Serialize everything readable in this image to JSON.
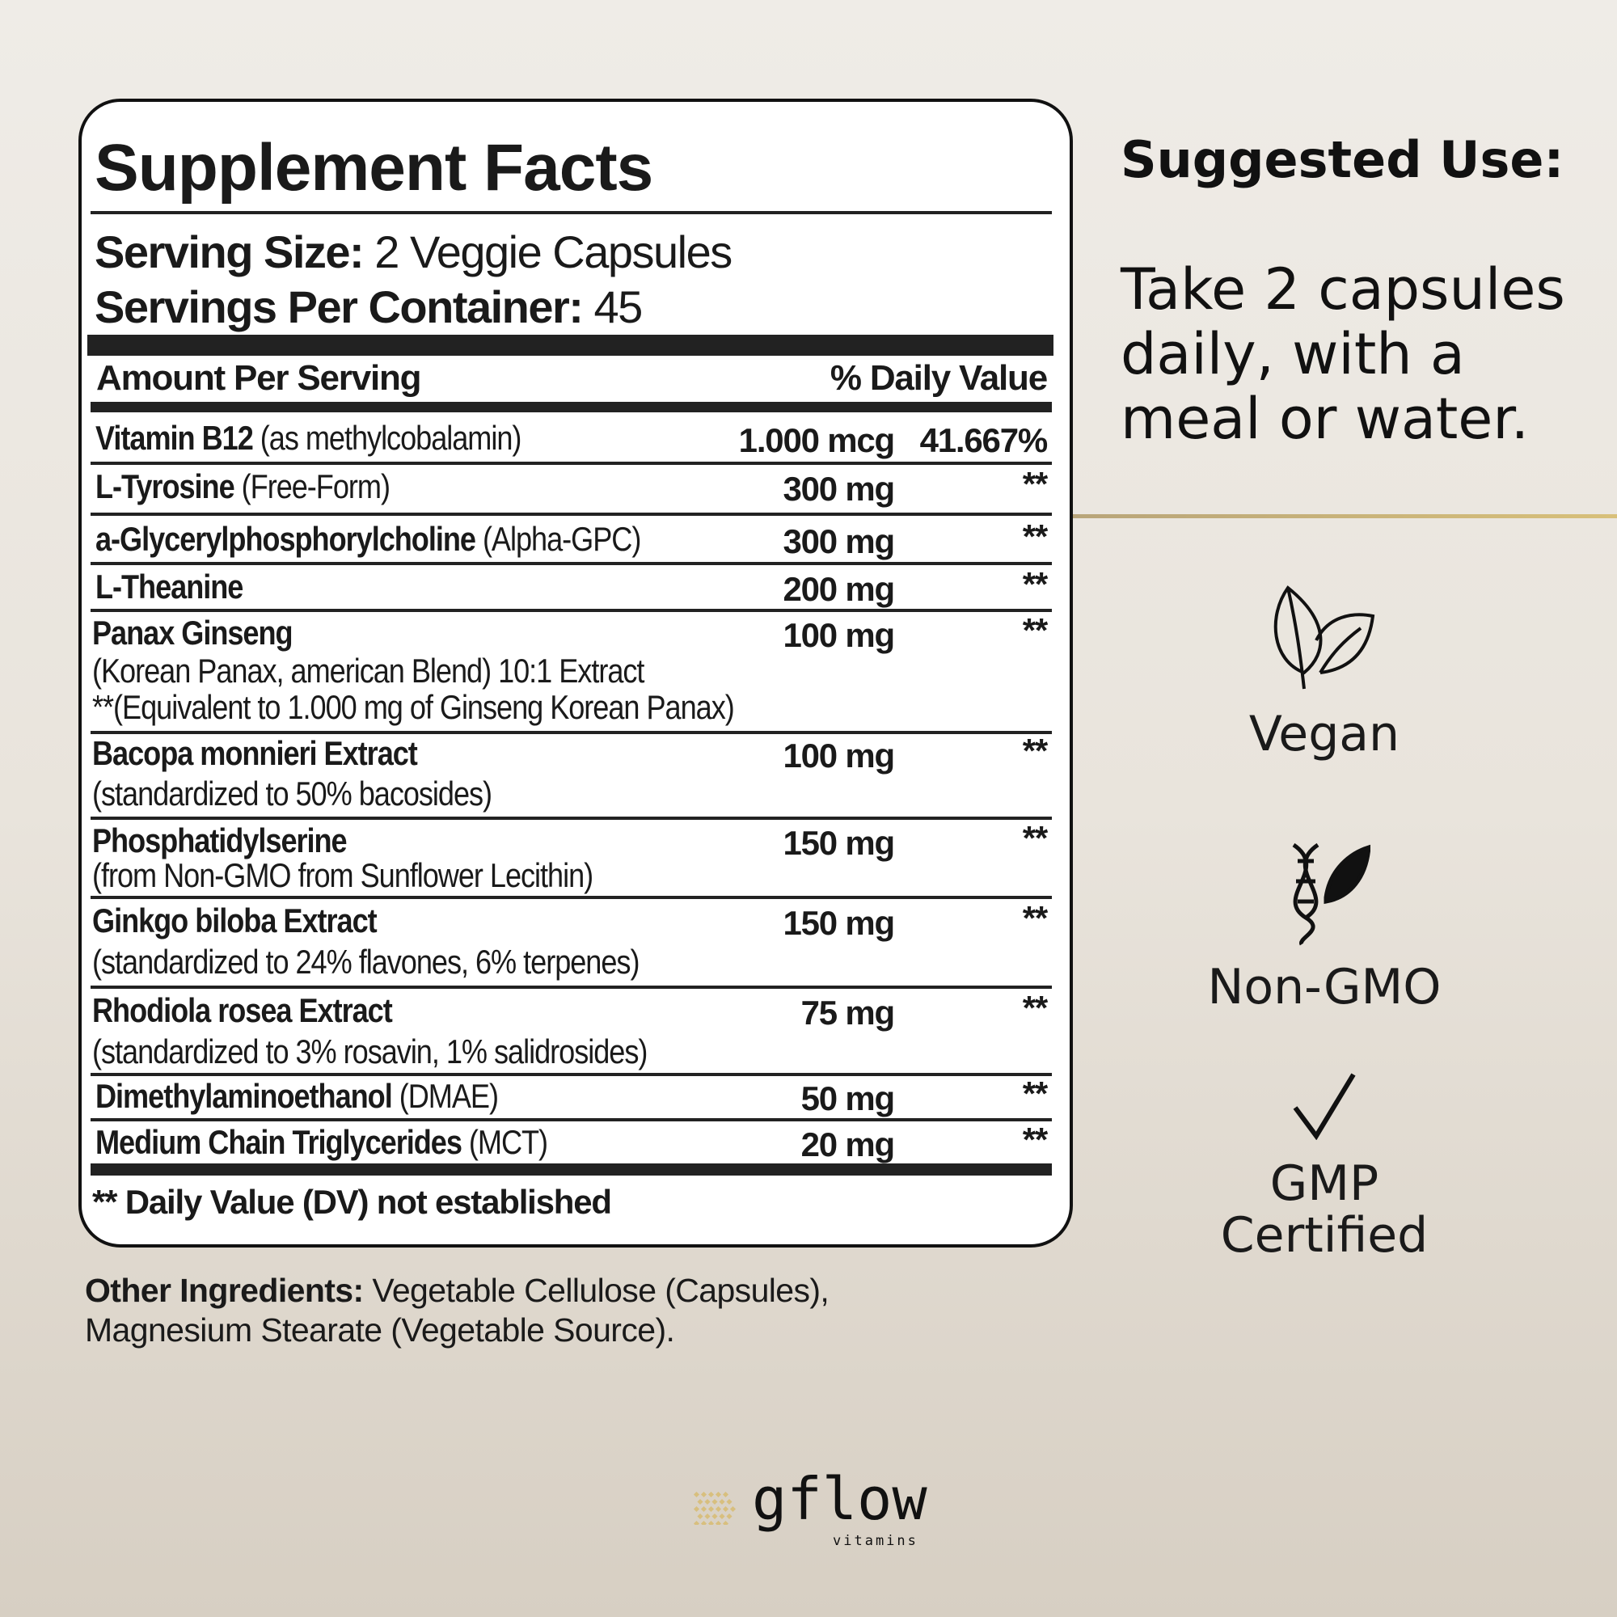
{
  "facts": {
    "title": "Supplement Facts",
    "serving_size_label": "Serving Size:",
    "serving_size_value": "2 Veggie Capsules",
    "servings_label": "Servings Per Container:",
    "servings_value": "45",
    "amount_header": "Amount Per Serving",
    "dv_header": "% Daily Value",
    "rows": [
      {
        "name": "Vitamin B12",
        "detail": "(as methylcobalamin)",
        "amount": "1.000 mcg",
        "dv": "41.667%"
      },
      {
        "name": "L-Tyrosine",
        "detail": "(Free-Form)",
        "amount": "300 mg",
        "dv": "**"
      },
      {
        "name": "a-Glycerylphosphorylcholine",
        "detail": "(Alpha-GPC)",
        "amount": "300 mg",
        "dv": "**"
      },
      {
        "name": "L-Theanine",
        "detail": "",
        "amount": "200 mg",
        "dv": "**"
      },
      {
        "name": "Panax Ginseng",
        "detail": "(Korean Panax, american Blend) 10:1 Extract",
        "detail2": "**(Equivalent to 1.000 mg of Ginseng Korean Panax)",
        "amount": "100 mg",
        "dv": "**"
      },
      {
        "name": "Bacopa monnieri Extract",
        "detail": "(standardized to 50% bacosides)",
        "amount": "100 mg",
        "dv": "**"
      },
      {
        "name": "Phosphatidylserine",
        "detail": "(from Non-GMO from Sunflower Lecithin)",
        "amount": "150 mg",
        "dv": "**"
      },
      {
        "name": "Ginkgo biloba Extract",
        "detail": "(standardized to 24% flavones, 6% terpenes)",
        "amount": "150 mg",
        "dv": "**"
      },
      {
        "name": "Rhodiola rosea Extract",
        "detail": "(standardized to 3% rosavin, 1% salidrosides)",
        "amount": "75 mg",
        "dv": "**"
      },
      {
        "name": "Dimethylaminoethanol",
        "detail": "(DMAE)",
        "amount": "50 mg",
        "dv": "**"
      },
      {
        "name": "Medium Chain Triglycerides",
        "detail": "(MCT)",
        "amount": "20 mg",
        "dv": "**"
      }
    ],
    "footnote": "** Daily Value (DV) not established"
  },
  "other_ingredients": {
    "label": "Other Ingredients:",
    "line1": "Vegetable Cellulose (Capsules),",
    "line2": "Magnesium Stearate (Vegetable Source)."
  },
  "suggested_use": {
    "title": "Suggested Use:",
    "lines": [
      "Take 2 capsules",
      "daily, with a",
      "meal or water."
    ]
  },
  "badges": [
    {
      "icon": "leaf-icon",
      "label": "Vegan"
    },
    {
      "icon": "dna-leaf-icon",
      "label": "Non-GMO"
    },
    {
      "icon": "checkmark-icon",
      "label": "GMP",
      "label2": "Certified"
    }
  ],
  "brand": {
    "name": "gflow",
    "sub": "vitamins"
  },
  "colors": {
    "accent": "#c9ad6a",
    "text": "#1a1a1a"
  }
}
